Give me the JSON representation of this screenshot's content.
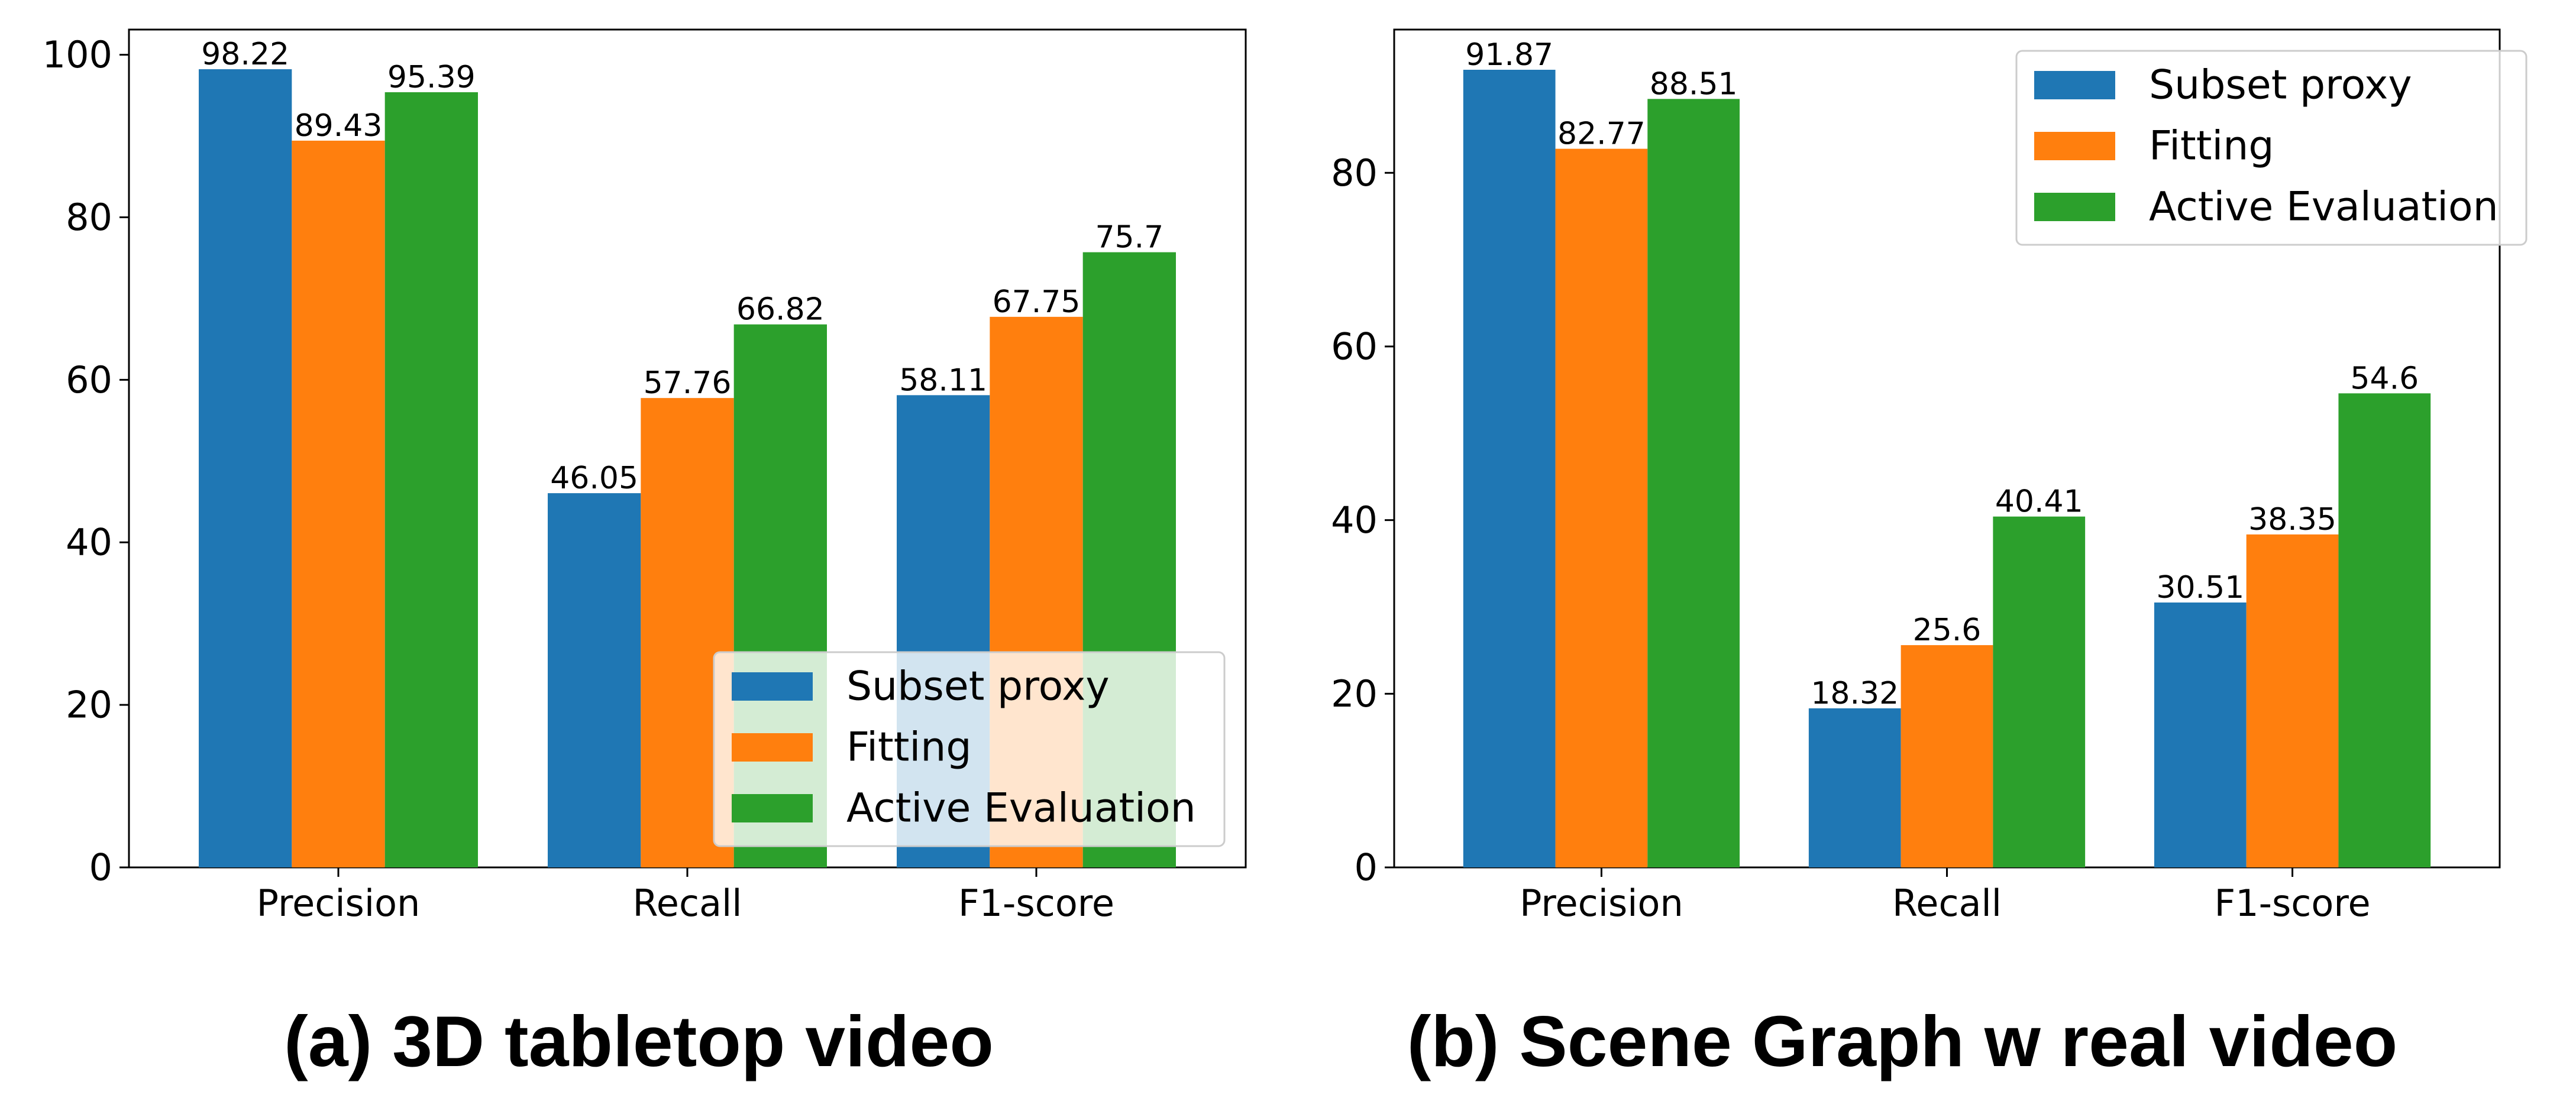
{
  "chart_data": [
    {
      "type": "bar",
      "caption": "(a) 3D tabletop video",
      "categories": [
        "Precision",
        "Recall",
        "F1-score"
      ],
      "series": [
        {
          "name": "Subset proxy",
          "color": "#1f77b4",
          "values": [
            98.22,
            46.05,
            58.11
          ],
          "labels": [
            "98.22",
            "46.05",
            "58.11"
          ]
        },
        {
          "name": "Fitting",
          "color": "#ff7f0e",
          "values": [
            89.43,
            57.76,
            67.75
          ],
          "labels": [
            "89.43",
            "57.76",
            "67.75"
          ]
        },
        {
          "name": "Active Evaluation",
          "color": "#2ca02c",
          "values": [
            95.39,
            66.82,
            75.7
          ],
          "labels": [
            "95.39",
            "66.82",
            "75.7"
          ]
        }
      ],
      "yticks": [
        0,
        20,
        40,
        60,
        80,
        100
      ],
      "ylim": [
        0,
        103.1
      ],
      "legend": "lower-right",
      "xlabel": "",
      "ylabel": ""
    },
    {
      "type": "bar",
      "caption": "(b) Scene Graph w real video",
      "categories": [
        "Precision",
        "Recall",
        "F1-score"
      ],
      "series": [
        {
          "name": "Subset proxy",
          "color": "#1f77b4",
          "values": [
            91.87,
            18.32,
            30.51
          ],
          "labels": [
            "91.87",
            "18.32",
            "30.51"
          ]
        },
        {
          "name": "Fitting",
          "color": "#ff7f0e",
          "values": [
            82.77,
            25.6,
            38.35
          ],
          "labels": [
            "82.77",
            "25.6",
            "38.35"
          ]
        },
        {
          "name": "Active Evaluation",
          "color": "#2ca02c",
          "values": [
            88.51,
            40.41,
            54.6
          ],
          "labels": [
            "88.51",
            "40.41",
            "54.6"
          ]
        }
      ],
      "yticks": [
        0,
        20,
        40,
        60,
        80
      ],
      "ylim": [
        0,
        96.5
      ],
      "legend": "upper-right",
      "xlabel": "",
      "ylabel": ""
    }
  ]
}
